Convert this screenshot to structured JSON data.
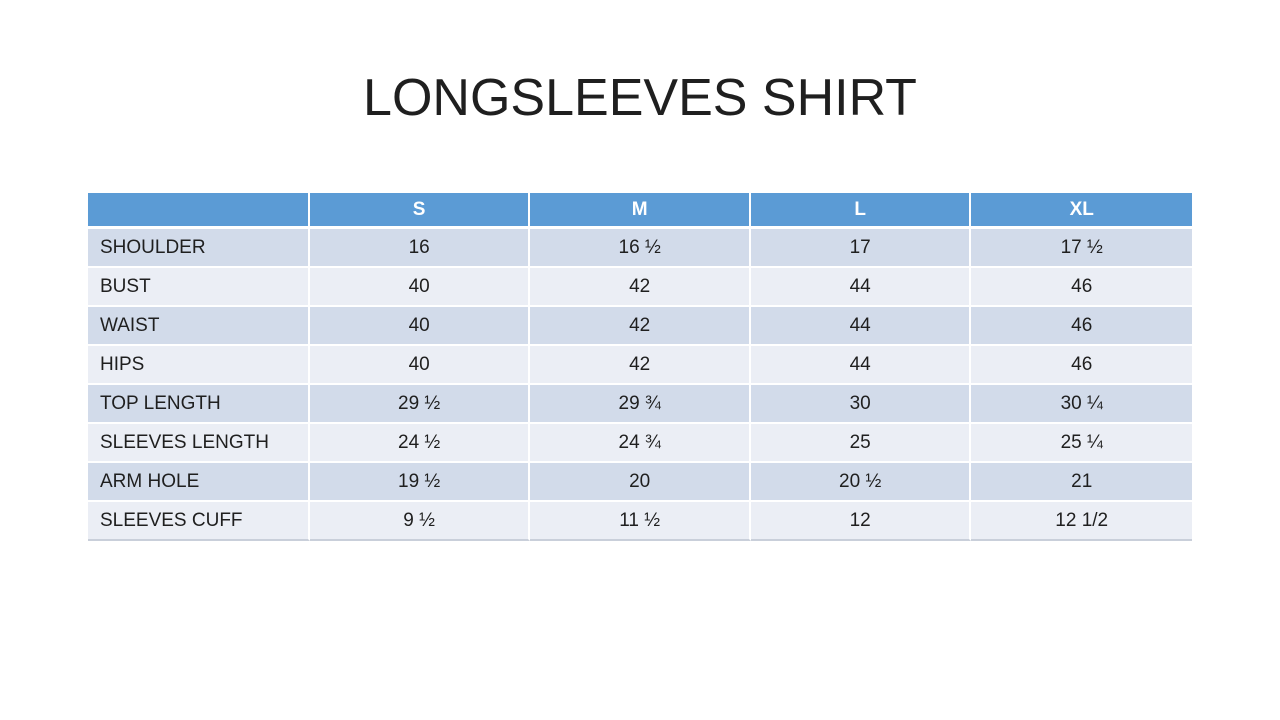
{
  "slide": {
    "title": "LONGSLEEVES SHIRT"
  },
  "size_chart": {
    "columns": [
      "",
      "S",
      "M",
      "L",
      "XL"
    ],
    "rows": [
      {
        "label": "SHOULDER",
        "values": [
          "16",
          "16 ½",
          "17",
          "17 ½"
        ]
      },
      {
        "label": "BUST",
        "values": [
          "40",
          "42",
          "44",
          "46"
        ]
      },
      {
        "label": "WAIST",
        "values": [
          "40",
          "42",
          "44",
          "46"
        ]
      },
      {
        "label": "HIPS",
        "values": [
          "40",
          "42",
          "44",
          "46"
        ]
      },
      {
        "label": "TOP LENGTH",
        "values": [
          "29 ½",
          "29 ¾",
          "30",
          "30 ¼"
        ]
      },
      {
        "label": "SLEEVES LENGTH",
        "values": [
          "24 ½",
          "24 ¾",
          "25",
          "25 ¼"
        ]
      },
      {
        "label": "ARM HOLE",
        "values": [
          "19 ½",
          "20",
          "20 ½",
          "21"
        ]
      },
      {
        "label": "SLEEVES CUFF",
        "values": [
          "9 ½",
          "11 ½",
          "12",
          "12 1/2"
        ]
      }
    ],
    "colors": {
      "header_bg": "#5B9BD5",
      "header_text": "#FFFFFF",
      "band_dark": "#D2DBEA",
      "band_light": "#EBEEF5",
      "body_text": "#1F1F1F",
      "page_bg": "#FFFFFF"
    }
  }
}
